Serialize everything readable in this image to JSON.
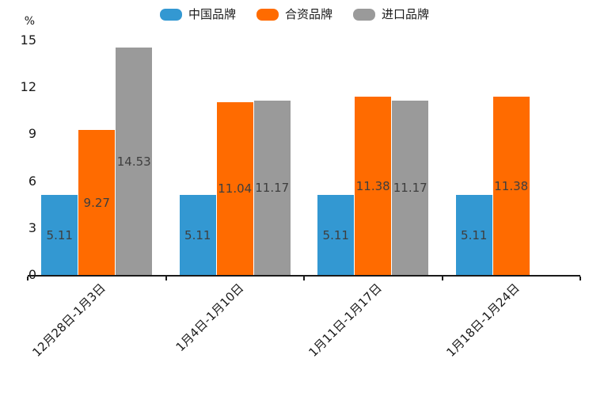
{
  "chart_data": {
    "type": "bar",
    "title": "",
    "xlabel": "",
    "ylabel": "%",
    "ylim": [
      0,
      15
    ],
    "yticks": [
      0,
      3,
      6,
      9,
      12,
      15
    ],
    "grid": false,
    "data_labels": true,
    "legend_position": "top",
    "categories": [
      "12月28日-1月3日",
      "1月4日-1月10日",
      "1月11日-1月17日",
      "1月18日-1月24日"
    ],
    "series": [
      {
        "name": "中国品牌",
        "color": "#3398d2",
        "values": [
          5.11,
          5.11,
          5.11,
          5.11
        ]
      },
      {
        "name": "合资品牌",
        "color": "#ff6b00",
        "values": [
          9.27,
          11.04,
          11.38,
          11.38
        ]
      },
      {
        "name": "进口品牌",
        "color": "#9a9a9a",
        "values": [
          14.53,
          11.17,
          11.17,
          null
        ]
      }
    ],
    "colors": {
      "axis": "#1a1a1a",
      "tick_text": "#1a1a1a",
      "data_label_text": "#3e3e3e",
      "background": "#ffffff"
    }
  }
}
